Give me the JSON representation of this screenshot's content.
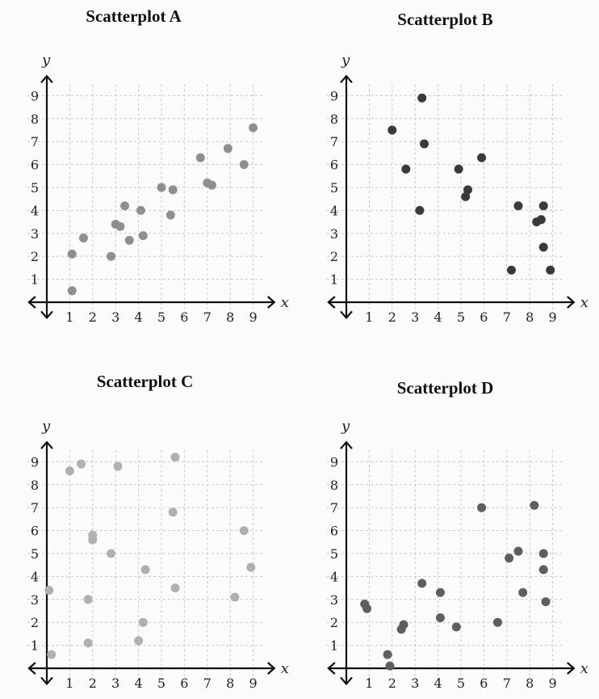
{
  "colors": {
    "A": "#8f8f8f",
    "B": "#3a3a3a",
    "C": "#b0b0b0",
    "D": "#5e5e5e",
    "axis": "#111111",
    "grid": "#c8c8c8"
  },
  "chart_data": [
    {
      "type": "scatter",
      "title": "Scatterplot A",
      "xlabel": "x",
      "ylabel": "y",
      "xlim": [
        0,
        9.5
      ],
      "ylim": [
        0,
        9.5
      ],
      "x_ticks": [
        1,
        2,
        3,
        4,
        5,
        6,
        7,
        8,
        9
      ],
      "y_ticks": [
        1,
        2,
        3,
        4,
        5,
        6,
        7,
        8,
        9
      ],
      "grid": true,
      "points": [
        [
          1.1,
          0.5
        ],
        [
          1.1,
          2.1
        ],
        [
          1.6,
          2.8
        ],
        [
          2.8,
          2.0
        ],
        [
          3.0,
          3.4
        ],
        [
          3.2,
          3.3
        ],
        [
          3.4,
          4.2
        ],
        [
          3.6,
          2.7
        ],
        [
          4.1,
          4.0
        ],
        [
          4.2,
          2.9
        ],
        [
          5.0,
          5.0
        ],
        [
          5.4,
          3.8
        ],
        [
          5.5,
          4.9
        ],
        [
          6.7,
          6.3
        ],
        [
          7.0,
          5.2
        ],
        [
          7.2,
          5.1
        ],
        [
          7.9,
          6.7
        ],
        [
          8.6,
          6.0
        ],
        [
          9.0,
          7.6
        ]
      ]
    },
    {
      "type": "scatter",
      "title": "Scatterplot B",
      "xlabel": "x",
      "ylabel": "y",
      "xlim": [
        0,
        9.5
      ],
      "ylim": [
        0,
        9.5
      ],
      "x_ticks": [
        1,
        2,
        3,
        4,
        5,
        6,
        7,
        8,
        9
      ],
      "y_ticks": [
        1,
        2,
        3,
        4,
        5,
        6,
        7,
        8,
        9
      ],
      "grid": true,
      "points": [
        [
          2.0,
          7.5
        ],
        [
          2.6,
          5.8
        ],
        [
          3.2,
          4.0
        ],
        [
          3.3,
          8.9
        ],
        [
          3.4,
          6.9
        ],
        [
          4.9,
          5.8
        ],
        [
          5.2,
          4.6
        ],
        [
          5.3,
          4.9
        ],
        [
          5.9,
          6.3
        ],
        [
          7.2,
          1.4
        ],
        [
          7.5,
          4.2
        ],
        [
          8.3,
          3.5
        ],
        [
          8.5,
          3.6
        ],
        [
          8.6,
          2.4
        ],
        [
          8.6,
          4.2
        ],
        [
          8.9,
          1.4
        ]
      ]
    },
    {
      "type": "scatter",
      "title": "Scatterplot C",
      "xlabel": "x",
      "ylabel": "y",
      "xlim": [
        0,
        9.5
      ],
      "ylim": [
        0,
        9.5
      ],
      "x_ticks": [
        1,
        2,
        3,
        4,
        5,
        6,
        7,
        8,
        9
      ],
      "y_ticks": [
        1,
        2,
        3,
        4,
        5,
        6,
        7,
        8,
        9
      ],
      "grid": true,
      "points": [
        [
          0.1,
          3.4
        ],
        [
          0.2,
          0.6
        ],
        [
          1.0,
          8.6
        ],
        [
          1.5,
          8.9
        ],
        [
          1.8,
          3.0
        ],
        [
          1.8,
          1.1
        ],
        [
          2.0,
          5.8
        ],
        [
          2.0,
          5.6
        ],
        [
          2.8,
          5.0
        ],
        [
          3.1,
          8.8
        ],
        [
          4.0,
          1.2
        ],
        [
          4.2,
          2.0
        ],
        [
          4.3,
          4.3
        ],
        [
          5.5,
          6.8
        ],
        [
          5.6,
          9.2
        ],
        [
          5.6,
          3.5
        ],
        [
          8.2,
          3.1
        ],
        [
          8.6,
          6.0
        ],
        [
          8.9,
          4.4
        ]
      ]
    },
    {
      "type": "scatter",
      "title": "Scatterplot D",
      "xlabel": "x",
      "ylabel": "y",
      "xlim": [
        0,
        9.5
      ],
      "ylim": [
        0,
        9.5
      ],
      "x_ticks": [
        1,
        2,
        3,
        4,
        5,
        6,
        7,
        8,
        9
      ],
      "y_ticks": [
        1,
        2,
        3,
        4,
        5,
        6,
        7,
        8,
        9
      ],
      "grid": true,
      "points": [
        [
          0.8,
          2.8
        ],
        [
          0.9,
          2.6
        ],
        [
          1.8,
          0.6
        ],
        [
          1.9,
          0.1
        ],
        [
          2.4,
          1.7
        ],
        [
          2.5,
          1.9
        ],
        [
          3.3,
          3.7
        ],
        [
          4.1,
          3.3
        ],
        [
          4.1,
          2.2
        ],
        [
          4.8,
          1.8
        ],
        [
          5.9,
          7.0
        ],
        [
          6.6,
          2.0
        ],
        [
          7.1,
          4.8
        ],
        [
          7.5,
          5.1
        ],
        [
          7.7,
          3.3
        ],
        [
          8.2,
          7.1
        ],
        [
          8.6,
          5.0
        ],
        [
          8.6,
          4.3
        ],
        [
          8.7,
          2.9
        ]
      ]
    }
  ]
}
